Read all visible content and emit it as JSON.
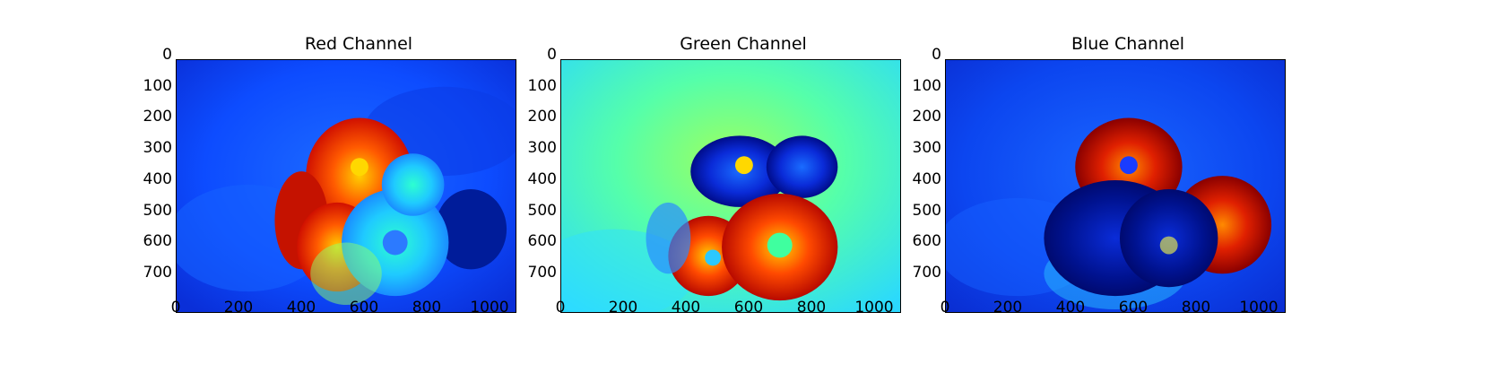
{
  "figure": {
    "panels": [
      {
        "id": "red",
        "title": "Red Channel",
        "yticks": [
          "0",
          "100",
          "200",
          "300",
          "400",
          "500",
          "600",
          "700"
        ],
        "xticks": [
          "0",
          "200",
          "400",
          "600",
          "800",
          "1000"
        ]
      },
      {
        "id": "green",
        "title": "Green Channel",
        "yticks": [
          "0",
          "100",
          "200",
          "300",
          "400",
          "500",
          "600",
          "700"
        ],
        "xticks": [
          "0",
          "200",
          "400",
          "600",
          "800",
          "1000"
        ]
      },
      {
        "id": "blue",
        "title": "Blue Channel",
        "yticks": [
          "0",
          "100",
          "200",
          "300",
          "400",
          "500",
          "600",
          "700"
        ],
        "xticks": [
          "0",
          "200",
          "400",
          "600",
          "800",
          "1000"
        ]
      }
    ],
    "colormap": "jet",
    "colors": {
      "low": "#00008f",
      "mid": "#7fff7f",
      "high": "#7f0000"
    }
  }
}
